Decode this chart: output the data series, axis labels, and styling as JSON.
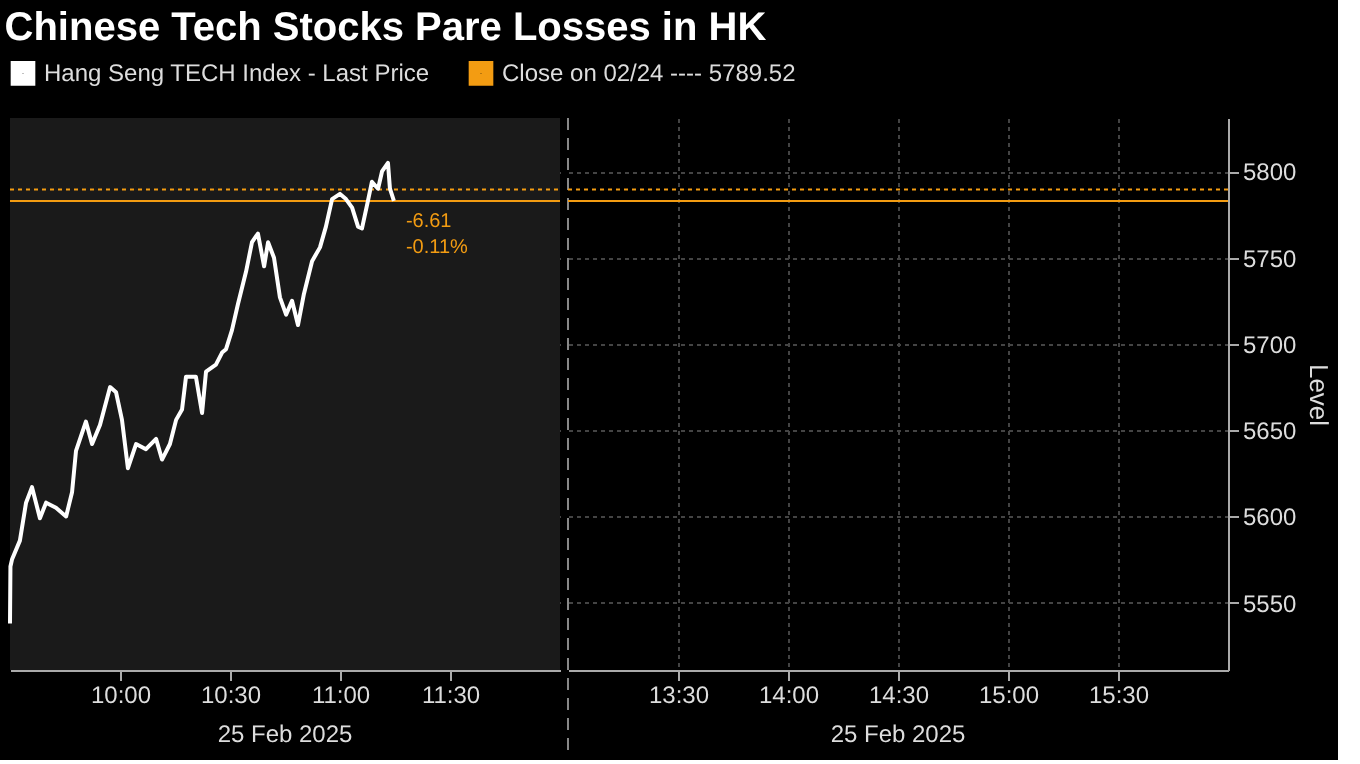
{
  "chart_data": [
    {
      "type": "line",
      "title": "Chinese Tech Stocks Pare Losses in HK",
      "x": [
        9.5,
        9.502,
        9.509,
        9.545,
        9.573,
        9.6,
        9.636,
        9.664,
        9.709,
        9.755,
        9.782,
        9.8,
        9.845,
        9.873,
        9.909,
        9.955,
        9.982,
        10.009,
        10.036,
        10.073,
        10.118,
        10.164,
        10.191,
        10.227,
        10.255,
        10.282,
        10.3,
        10.345,
        10.373,
        10.391,
        10.436,
        10.464,
        10.482,
        10.509,
        10.536,
        10.573,
        10.6,
        10.627,
        10.655,
        10.673,
        10.7,
        10.727,
        10.755,
        10.782,
        10.809,
        10.836,
        10.873,
        10.909,
        10.936,
        10.964,
        11.0,
        11.027,
        11.055,
        11.082,
        11.1,
        11.127,
        11.145,
        11.173,
        11.191,
        11.218,
        11.227,
        11.245
      ],
      "series": [
        {
          "name": "Hang Seng TECH Index - Last Price",
          "color": "#ffffff",
          "values": [
            5538,
            5571,
            5575,
            5586,
            5608,
            5617,
            5599,
            5608,
            5605,
            5600,
            5614,
            5638,
            5655,
            5642,
            5653,
            5675,
            5672,
            5656,
            5628,
            5642,
            5639,
            5645,
            5633,
            5642,
            5656,
            5662,
            5681,
            5681,
            5660,
            5684,
            5688,
            5695,
            5697,
            5708,
            5723,
            5742,
            5759,
            5764,
            5745,
            5759,
            5750,
            5727,
            5717,
            5725,
            5711,
            5729,
            5748,
            5756,
            5768,
            5784,
            5787,
            5784,
            5779,
            5768,
            5767,
            5783,
            5794,
            5790,
            5800,
            5805,
            5790,
            5783
          ]
        }
      ],
      "xlim": [
        9.5,
        12
      ],
      "xticks": [
        {
          "value": 10,
          "label": "10:00"
        },
        {
          "value": 10.5,
          "label": "10:30"
        },
        {
          "value": 11,
          "label": "11:00"
        },
        {
          "value": 11.5,
          "label": "11:30"
        }
      ],
      "ylim": [
        5511,
        5831
      ],
      "yticks": [
        5550,
        5600,
        5650,
        5700,
        5750,
        5800
      ],
      "tick_labels": "x",
      "ref_lines": [
        {
          "axis": "y",
          "value": 5789.52,
          "label": "Close on 02/24 ---- 5789.52",
          "color": "#f39c12",
          "line_style": "dotted"
        },
        {
          "axis": "y",
          "value": 5782.91,
          "color": "#f39c12",
          "line_style": "solid"
        }
      ],
      "bands": [
        {
          "axis": "x",
          "from": 9.5,
          "to": 12,
          "color": "#1a1a1a"
        }
      ],
      "annotations": [
        {
          "text": "-6.61",
          "x": 11.245,
          "y": 5782.91
        },
        {
          "text": "-0.11%",
          "x": 11.245,
          "y": 5782.91
        },
        "25 Feb 2025"
      ],
      "grid": true,
      "legend": "top",
      "marker": "none",
      "line_style": "solid"
    },
    {
      "type": "line",
      "ylabel": "Level",
      "xlim": [
        13,
        16
      ],
      "xticks": [
        {
          "value": 13.5,
          "label": "13:30"
        },
        {
          "value": 14,
          "label": "14:00"
        },
        {
          "value": 14.5,
          "label": "14:30"
        },
        {
          "value": 15,
          "label": "15:00"
        },
        {
          "value": 15.5,
          "label": "15:30"
        }
      ],
      "ylim": [
        5511,
        5831
      ],
      "yticks": [
        5550,
        5600,
        5650,
        5700,
        5750,
        5800
      ],
      "ref_lines": [
        {
          "axis": "y",
          "value": 5789.52,
          "color": "#f39c12",
          "line_style": "dotted"
        },
        {
          "axis": "y",
          "value": 5782.91,
          "color": "#f39c12",
          "line_style": "solid"
        }
      ],
      "annotations": [
        "25 Feb 2025"
      ],
      "grid": true
    }
  ]
}
